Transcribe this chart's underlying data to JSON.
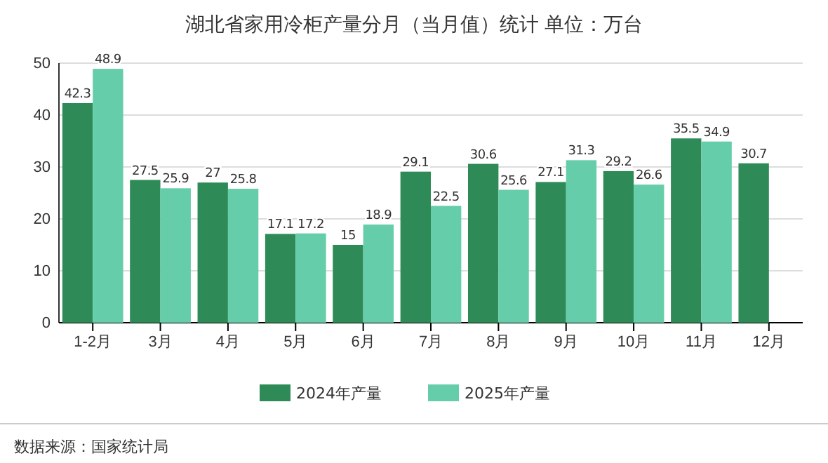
{
  "chart_data": {
    "type": "bar",
    "title": "湖北省家用冷柜产量分月（当月值）统计 单位：万台",
    "categories": [
      "1-2月",
      "3月",
      "4月",
      "5月",
      "6月",
      "7月",
      "8月",
      "9月",
      "10月",
      "11月",
      "12月"
    ],
    "series": [
      {
        "name": "2024年产量",
        "color": "#2e8b57",
        "values": [
          42.3,
          27.5,
          27,
          17.1,
          15,
          29.1,
          30.6,
          27.1,
          29.2,
          35.5,
          30.7
        ]
      },
      {
        "name": "2025年产量",
        "color": "#66cdaa",
        "values": [
          48.9,
          25.9,
          25.8,
          17.2,
          18.9,
          22.5,
          25.6,
          31.3,
          26.6,
          34.9,
          null
        ]
      }
    ],
    "ylim": [
      0,
      50
    ],
    "yticks": [
      0,
      10,
      20,
      30,
      40,
      50
    ],
    "grid": "y",
    "legend": "bottom",
    "data_labels": true,
    "annotations": [
      "数据来源：国家统计局"
    ]
  }
}
